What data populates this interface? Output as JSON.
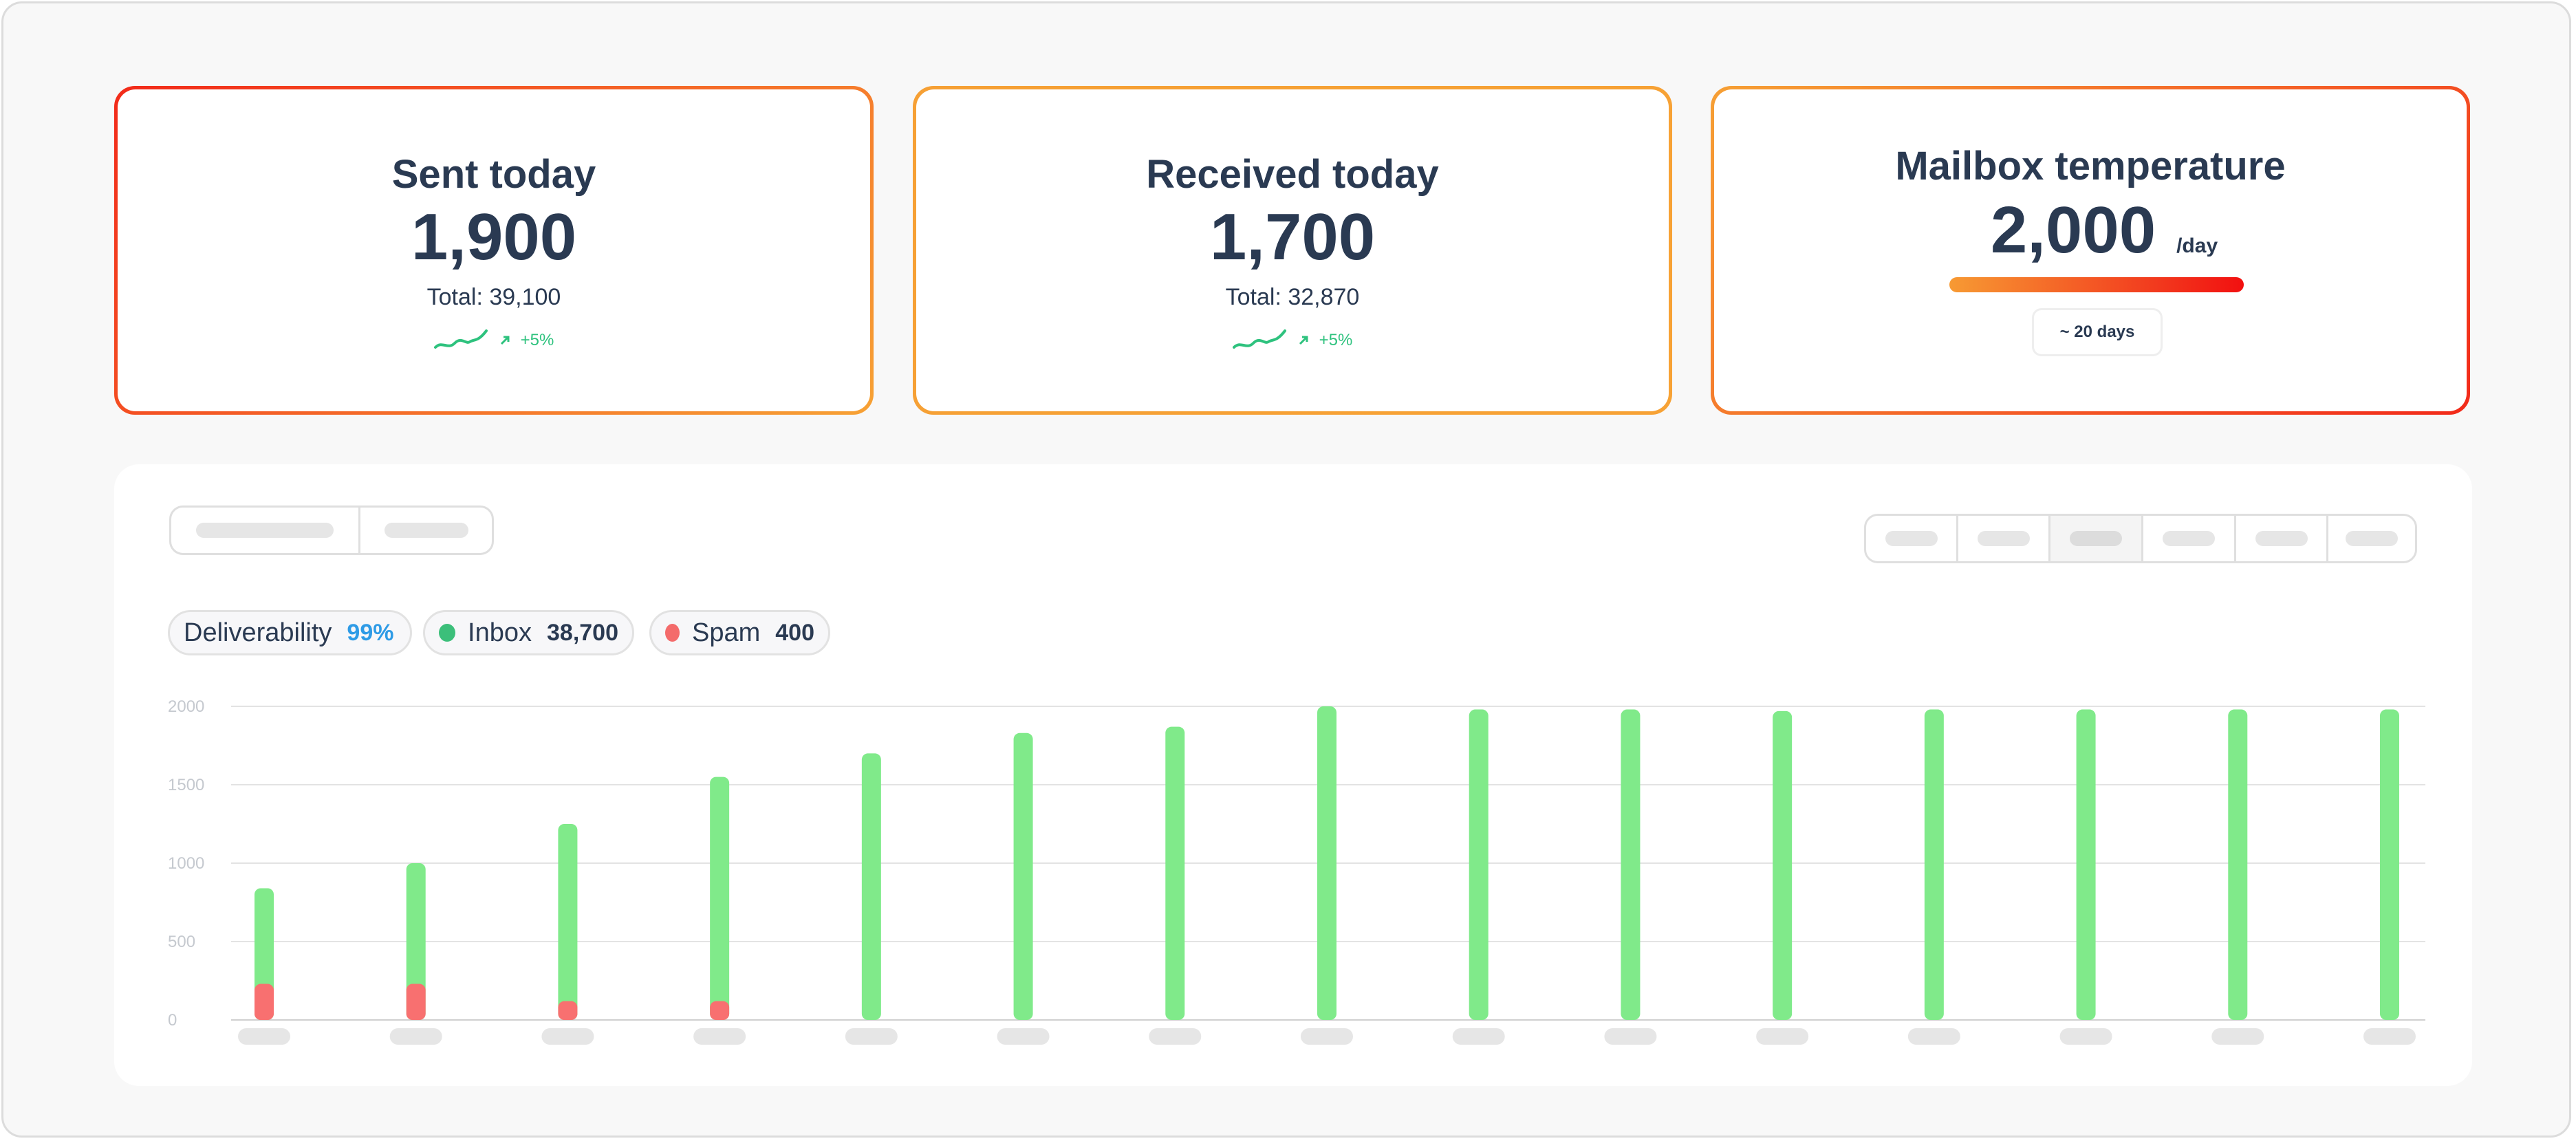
{
  "cards": {
    "sent": {
      "title": "Sent today",
      "value": "1,900",
      "total": "Total: 39,100",
      "trend": "+5%"
    },
    "received": {
      "title": "Received today",
      "value": "1,700",
      "total": "Total: 32,870",
      "trend": "+5%"
    },
    "temperature": {
      "title": "Mailbox temperature",
      "value": "2,000",
      "unit": "/day",
      "pill": "~ 20 days",
      "level": 1.0
    }
  },
  "colors": {
    "card_border_gradient": [
      "#f22a1a",
      "#f7a235"
    ],
    "text": "#2a3a52",
    "trend_green": "#2ec27e",
    "inbox": "#80ea8a",
    "spam": "#f87070",
    "deliverability_value": "#2e9be6"
  },
  "legend": {
    "deliverability": {
      "label": "Deliverability",
      "value": "99%"
    },
    "inbox": {
      "label": "Inbox",
      "value": "38,700",
      "dot_color": "#3cbf7a"
    },
    "spam": {
      "label": "Spam",
      "value": "400",
      "dot_color": "#f46b6b"
    }
  },
  "icons": {
    "trend_line": "sparkline-icon",
    "trend_arrow": "arrow-up-right-icon"
  },
  "chart_data": {
    "type": "bar",
    "stacked": true,
    "ylim": [
      0,
      2000
    ],
    "y_ticks": [
      "0",
      "500",
      "1000",
      "1500",
      "2000"
    ],
    "grid": true,
    "series": [
      {
        "name": "Inbox",
        "values": [
          610,
          770,
          1130,
          1430,
          1700,
          1830,
          1870,
          2000,
          1980,
          1980,
          1970,
          1980,
          1980,
          1980,
          1980
        ]
      },
      {
        "name": "Spam",
        "values": [
          230,
          230,
          120,
          120,
          0,
          0,
          0,
          0,
          0,
          0,
          0,
          0,
          0,
          0,
          0
        ]
      }
    ]
  }
}
